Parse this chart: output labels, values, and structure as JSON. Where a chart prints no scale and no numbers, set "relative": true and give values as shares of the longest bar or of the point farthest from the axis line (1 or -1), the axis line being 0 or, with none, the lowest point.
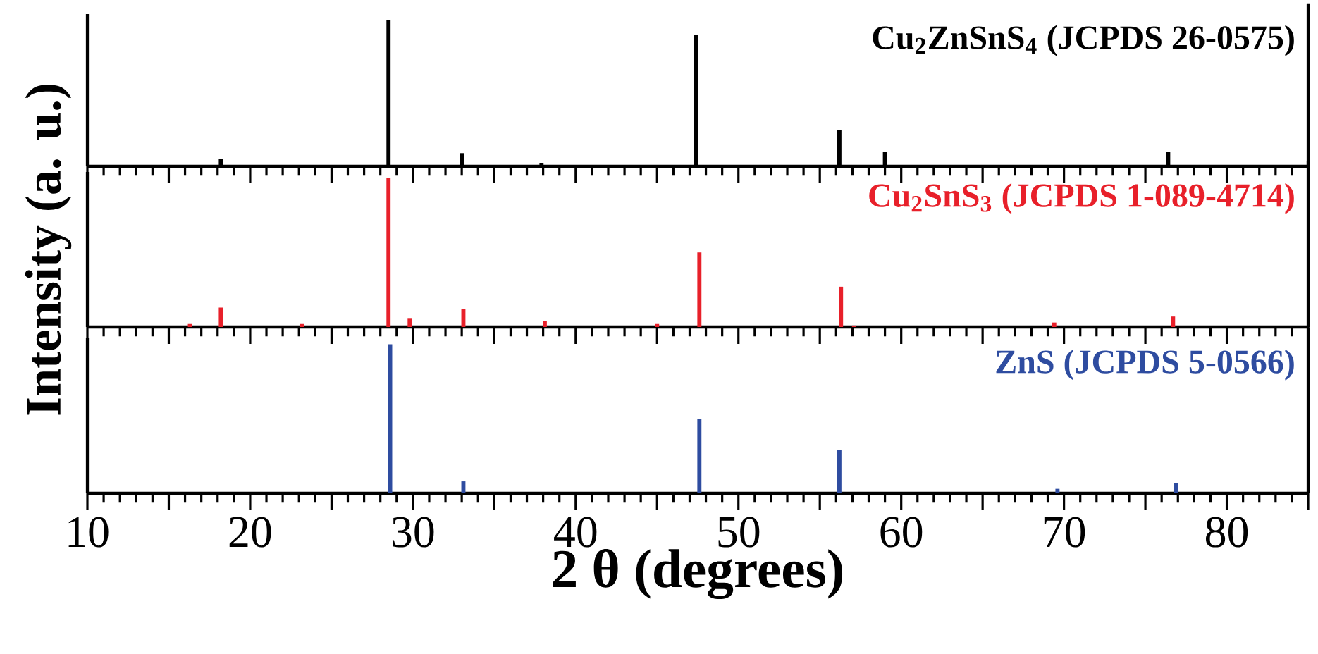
{
  "chart_data": [
    {
      "type": "bar",
      "relative": true,
      "xlim": [
        10,
        85
      ],
      "tick_labels": false,
      "xticks": [
        10,
        {
          "value": 15,
          "label": null
        },
        20,
        {
          "value": 25,
          "label": null
        },
        30,
        {
          "value": 35,
          "label": null
        },
        40,
        {
          "value": 45,
          "label": null
        },
        50,
        {
          "value": 55,
          "label": null
        },
        60,
        {
          "value": 65,
          "label": null
        },
        70,
        {
          "value": 75,
          "label": null
        },
        80,
        {
          "value": 85,
          "label": null
        }
      ],
      "series": [
        {
          "name": "Cu$_{2}$ZnSnS$_{4}$ (JCPDS 26-0575)",
          "color": "#000000",
          "x": [
            18.2,
            28.5,
            33.0,
            37.9,
            47.4,
            56.2,
            59.0,
            76.4
          ],
          "values": [
            0.05,
            1.0,
            0.09,
            0.02,
            0.9,
            0.25,
            0.1,
            0.1
          ]
        }
      ]
    },
    {
      "type": "bar",
      "relative": true,
      "xlim": [
        10,
        85
      ],
      "tick_labels": false,
      "ylabel": "Intensity (a. u.)",
      "xticks": [
        10,
        {
          "value": 15,
          "label": null
        },
        20,
        {
          "value": 25,
          "label": null
        },
        30,
        {
          "value": 35,
          "label": null
        },
        40,
        {
          "value": 45,
          "label": null
        },
        50,
        {
          "value": 55,
          "label": null
        },
        60,
        {
          "value": 65,
          "label": null
        },
        70,
        {
          "value": 75,
          "label": null
        },
        80,
        {
          "value": 85,
          "label": null
        }
      ],
      "series": [
        {
          "name": "Cu$_{2}$SnS$_{3}$ (JCPDS 1-089-4714)",
          "color": "#e8202a",
          "x": [
            16.3,
            18.2,
            23.2,
            28.5,
            29.8,
            33.1,
            38.1,
            45.0,
            47.6,
            56.3,
            57.1,
            69.4,
            76.7
          ],
          "values": [
            0.02,
            0.13,
            0.02,
            1.0,
            0.06,
            0.12,
            0.04,
            0.02,
            0.5,
            0.27,
            0.01,
            0.03,
            0.07
          ]
        }
      ]
    },
    {
      "type": "bar",
      "relative": true,
      "xlim": [
        10,
        85
      ],
      "tick_labels": "x",
      "xlabel": "2 θ (degrees)",
      "xticks": [
        10,
        {
          "value": 15,
          "label": null
        },
        20,
        {
          "value": 25,
          "label": null
        },
        30,
        {
          "value": 35,
          "label": null
        },
        40,
        {
          "value": 45,
          "label": null
        },
        50,
        {
          "value": 55,
          "label": null
        },
        60,
        {
          "value": 65,
          "label": null
        },
        70,
        {
          "value": 75,
          "label": null
        },
        80,
        {
          "value": 85,
          "label": null
        }
      ],
      "series": [
        {
          "name": "ZnS (JCPDS 5-0566)",
          "color": "#2e4ca0",
          "x": [
            28.6,
            33.1,
            47.6,
            56.2,
            69.6,
            76.9
          ],
          "values": [
            1.0,
            0.08,
            0.5,
            0.29,
            0.03,
            0.07
          ]
        }
      ]
    }
  ]
}
